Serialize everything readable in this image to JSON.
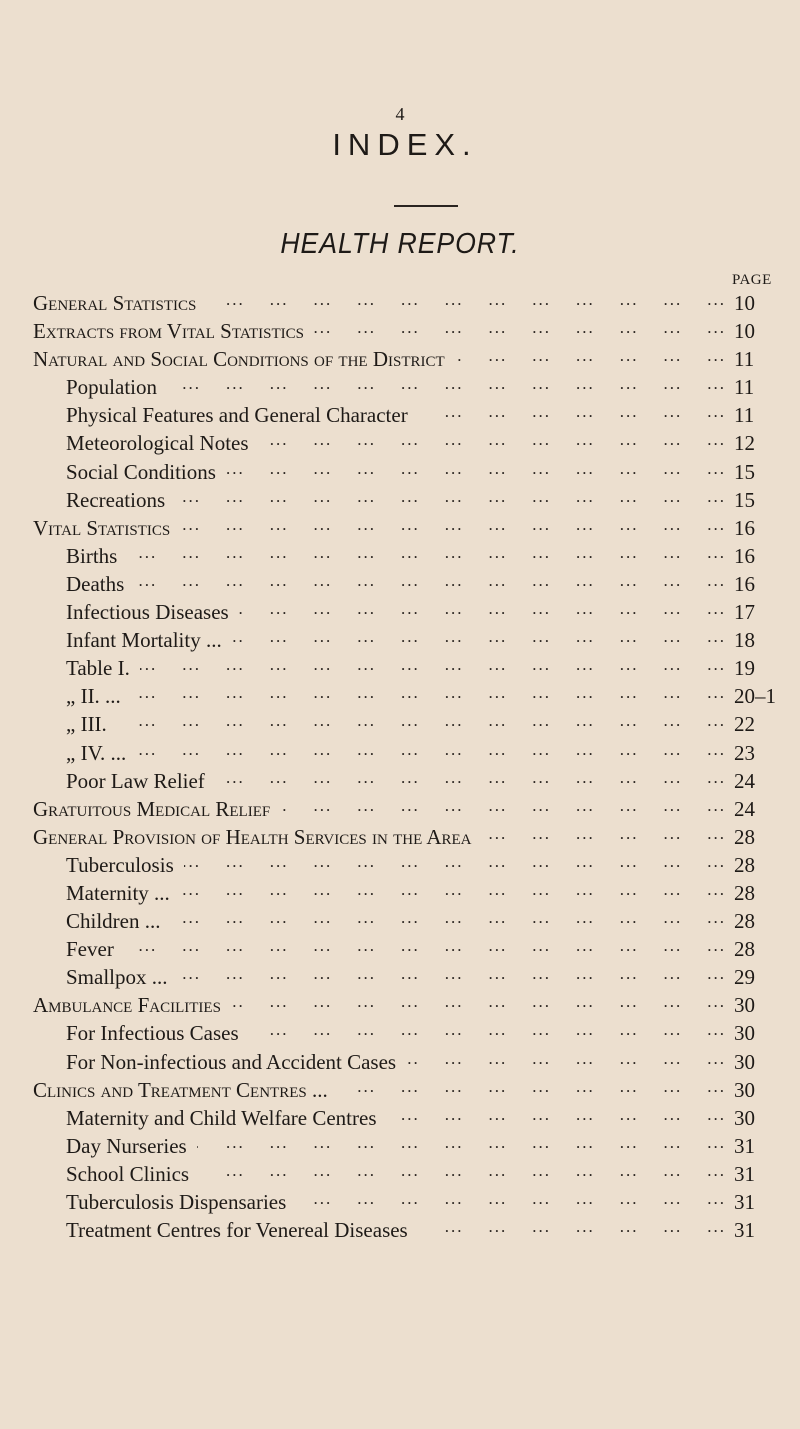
{
  "page_number": "4",
  "title": "INDEX.",
  "subtitle": "HEALTH REPORT.",
  "page_column_header": "PAGE",
  "entries": [
    {
      "label": "General Statistics",
      "page": "10",
      "level": "top"
    },
    {
      "label": "Extracts from Vital Statistics",
      "page": "10",
      "level": "top"
    },
    {
      "label": "Natural and Social Conditions of the District",
      "page": "11",
      "level": "top"
    },
    {
      "label": "Population",
      "page": "11",
      "level": "sub"
    },
    {
      "label": "Physical Features and General Character",
      "page": "11",
      "level": "sub"
    },
    {
      "label": "Meteorological Notes",
      "page": "12",
      "level": "sub"
    },
    {
      "label": "Social Conditions",
      "page": "15",
      "level": "sub"
    },
    {
      "label": "Recreations",
      "page": "15",
      "level": "sub"
    },
    {
      "label": "Vital Statistics",
      "page": "16",
      "level": "top"
    },
    {
      "label": "Births",
      "page": "16",
      "level": "sub"
    },
    {
      "label": "Deaths",
      "page": "16",
      "level": "sub"
    },
    {
      "label": "Infectious Diseases",
      "page": "17",
      "level": "sub"
    },
    {
      "label": "Infant Mortality ...",
      "page": "18",
      "level": "sub"
    },
    {
      "label": "Table I.",
      "page": "19",
      "level": "sub"
    },
    {
      "label": "„ II. ...",
      "page": "20–1",
      "level": "sub"
    },
    {
      "label": "„ III.",
      "page": "22",
      "level": "sub"
    },
    {
      "label": "„ IV. ...",
      "page": "23",
      "level": "sub"
    },
    {
      "label": "Poor Law Relief",
      "page": "24",
      "level": "sub"
    },
    {
      "label": "Gratuitous Medical Relief",
      "page": "24",
      "level": "top"
    },
    {
      "label": "General Provision of Health Services in the Area",
      "page": "28",
      "level": "top"
    },
    {
      "label": "Tuberculosis",
      "page": "28",
      "level": "sub"
    },
    {
      "label": "Maternity ...",
      "page": "28",
      "level": "sub"
    },
    {
      "label": "Children ...",
      "page": "28",
      "level": "sub"
    },
    {
      "label": "Fever",
      "page": "28",
      "level": "sub"
    },
    {
      "label": "Smallpox ...",
      "page": "29",
      "level": "sub"
    },
    {
      "label": "Ambulance Facilities",
      "page": "30",
      "level": "top"
    },
    {
      "label": "For Infectious Cases",
      "page": "30",
      "level": "sub"
    },
    {
      "label": "For Non-infectious and Accident Cases",
      "page": "30",
      "level": "sub"
    },
    {
      "label": "Clinics and Treatment Centres ...",
      "page": "30",
      "level": "top"
    },
    {
      "label": "Maternity and Child Welfare Centres",
      "page": "30",
      "level": "sub"
    },
    {
      "label": "Day Nurseries",
      "page": "31",
      "level": "sub"
    },
    {
      "label": "School Clinics",
      "page": "31",
      "level": "sub"
    },
    {
      "label": "Tuberculosis Dispensaries",
      "page": "31",
      "level": "sub"
    },
    {
      "label": "Treatment Centres for Venereal Diseases",
      "page": "31",
      "level": "sub"
    }
  ]
}
